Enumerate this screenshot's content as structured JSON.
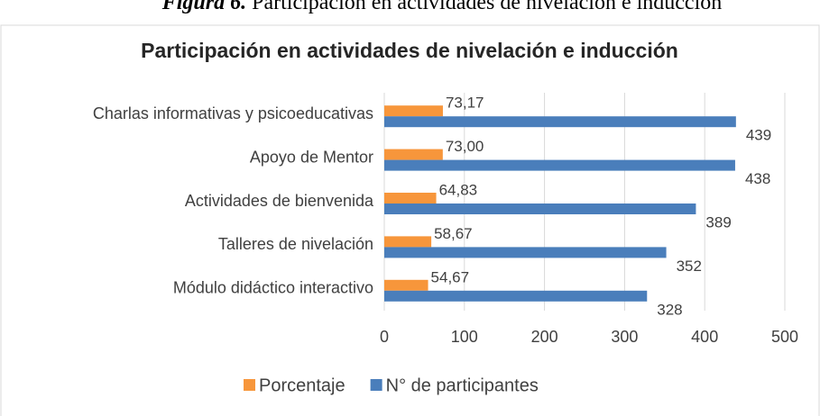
{
  "caption": {
    "label": "Figura 6.",
    "text": "Participación en actividades de nivelación e inducción"
  },
  "chart_data": {
    "type": "hbar",
    "title": "Participación en actividades de nivelación e inducción",
    "categories": [
      "Charlas informativas y psicoeducativas",
      "Apoyo de Mentor",
      "Actividades de bienvenida",
      "Talleres de nivelación",
      "Módulo didáctico interactivo"
    ],
    "series": [
      {
        "name": "Porcentaje",
        "color": "#F7963B",
        "values": [
          73.17,
          73.0,
          64.83,
          58.67,
          54.67
        ],
        "value_labels": [
          "73,17",
          "73,00",
          "64,83",
          "58,67",
          "54,67"
        ]
      },
      {
        "name": "N° de participantes",
        "color": "#4A7EBB",
        "values": [
          439,
          438,
          389,
          352,
          328
        ]
      }
    ],
    "xlim": [
      0,
      500
    ],
    "xticks": [
      0,
      100,
      200,
      300,
      400,
      500
    ],
    "grid": true,
    "legend": "bottom"
  }
}
